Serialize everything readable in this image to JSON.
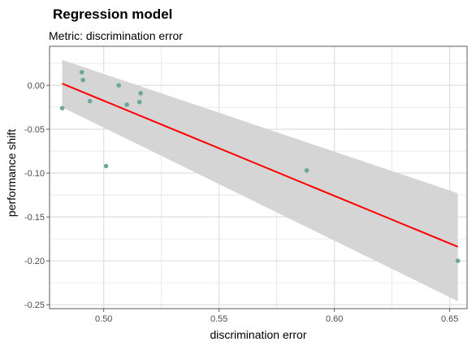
{
  "chart_data": {
    "type": "scatter",
    "title": "Regression model",
    "subtitle": "Metric: discrimination error",
    "xlabel": "discrimination error",
    "ylabel": "performance shift",
    "xlim": [
      0.4765,
      0.6575
    ],
    "ylim": [
      -0.2545,
      0.0445
    ],
    "x_ticks": [
      0.5,
      0.55,
      0.6,
      0.65
    ],
    "x_tick_labels": [
      "0.50",
      "0.55",
      "0.60",
      "0.65"
    ],
    "y_ticks": [
      0.0,
      -0.05,
      -0.1,
      -0.15,
      -0.2,
      -0.25
    ],
    "y_tick_labels": [
      "0.00",
      "-0.05",
      "-0.10",
      "-0.15",
      "-0.20",
      "-0.25"
    ],
    "grid": true,
    "points": [
      {
        "x": 0.482,
        "y": -0.026
      },
      {
        "x": 0.4905,
        "y": 0.015
      },
      {
        "x": 0.491,
        "y": 0.006
      },
      {
        "x": 0.494,
        "y": -0.018
      },
      {
        "x": 0.501,
        "y": -0.092
      },
      {
        "x": 0.5065,
        "y": 0.0
      },
      {
        "x": 0.51,
        "y": -0.022
      },
      {
        "x": 0.5155,
        "y": -0.019
      },
      {
        "x": 0.516,
        "y": -0.009
      },
      {
        "x": 0.588,
        "y": -0.097
      },
      {
        "x": 0.6535,
        "y": -0.2
      }
    ],
    "regression_line": {
      "x": [
        0.482,
        0.6535
      ],
      "y": [
        0.002,
        -0.184
      ]
    },
    "confidence_band": {
      "x": [
        0.482,
        0.6535
      ],
      "upper": [
        0.029,
        -0.123
      ],
      "lower": [
        -0.025,
        -0.246
      ]
    },
    "colors": {
      "points": "#6aa898",
      "regression_line": "#ff0000",
      "confidence_band": "#d3d3d3",
      "grid": "#dcdcdc",
      "panel_border": "#333333"
    }
  }
}
